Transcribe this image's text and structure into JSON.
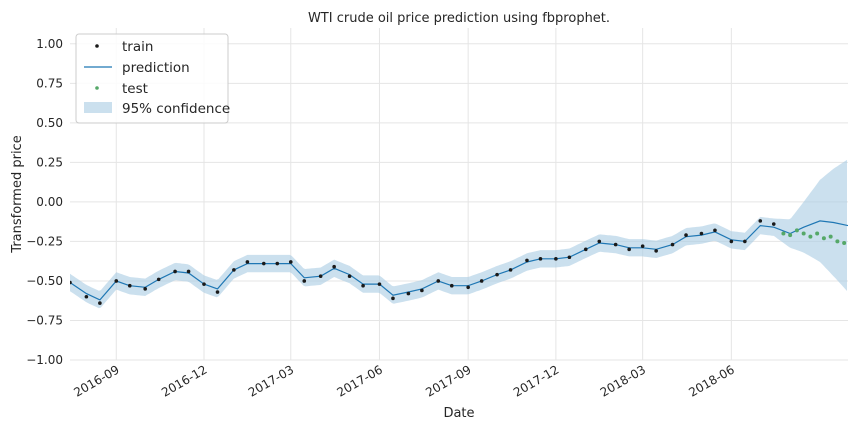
{
  "chart_data": {
    "type": "line",
    "title": "WTI crude oil price prediction using fbprophet.",
    "xlabel": "Date",
    "ylabel": "Transformed price",
    "xlim": [
      "2016-07-15",
      "2018-09-30"
    ],
    "ylim": [
      -1.0,
      1.1
    ],
    "grid": true,
    "legend_position": "top-left",
    "x_ticks": [
      "2016-09",
      "2016-12",
      "2017-03",
      "2017-06",
      "2017-09",
      "2017-12",
      "2018-03",
      "2018-06"
    ],
    "y_ticks": [
      "1.00",
      "0.75",
      "0.50",
      "0.25",
      "0.00",
      "−0.25",
      "−0.50",
      "−0.75",
      "−1.00"
    ],
    "colors": {
      "train": "#1a1a1a",
      "prediction": "#1f77b4",
      "test": "#55a868",
      "confidence": "#a9cce3"
    },
    "series": [
      {
        "name": "train",
        "kind": "points",
        "points": [
          [
            "2016-07-15",
            -0.51
          ],
          [
            "2016-08-01",
            -0.6
          ],
          [
            "2016-08-15",
            -0.64
          ],
          [
            "2016-09-01",
            -0.5
          ],
          [
            "2016-09-15",
            -0.53
          ],
          [
            "2016-10-01",
            -0.55
          ],
          [
            "2016-10-15",
            -0.49
          ],
          [
            "2016-11-01",
            -0.44
          ],
          [
            "2016-11-15",
            -0.44
          ],
          [
            "2016-12-01",
            -0.52
          ],
          [
            "2016-12-15",
            -0.57
          ],
          [
            "2017-01-01",
            -0.43
          ],
          [
            "2017-01-15",
            -0.38
          ],
          [
            "2017-02-01",
            -0.39
          ],
          [
            "2017-02-15",
            -0.39
          ],
          [
            "2017-03-01",
            -0.38
          ],
          [
            "2017-03-15",
            -0.5
          ],
          [
            "2017-04-01",
            -0.47
          ],
          [
            "2017-04-15",
            -0.41
          ],
          [
            "2017-05-01",
            -0.47
          ],
          [
            "2017-05-15",
            -0.53
          ],
          [
            "2017-06-01",
            -0.52
          ],
          [
            "2017-06-15",
            -0.61
          ],
          [
            "2017-07-01",
            -0.58
          ],
          [
            "2017-07-15",
            -0.56
          ],
          [
            "2017-08-01",
            -0.5
          ],
          [
            "2017-08-15",
            -0.53
          ],
          [
            "2017-09-01",
            -0.54
          ],
          [
            "2017-09-15",
            -0.5
          ],
          [
            "2017-10-01",
            -0.46
          ],
          [
            "2017-10-15",
            -0.43
          ],
          [
            "2017-11-01",
            -0.37
          ],
          [
            "2017-11-15",
            -0.36
          ],
          [
            "2017-12-01",
            -0.36
          ],
          [
            "2017-12-15",
            -0.35
          ],
          [
            "2018-01-01",
            -0.3
          ],
          [
            "2018-01-15",
            -0.25
          ],
          [
            "2018-02-01",
            -0.27
          ],
          [
            "2018-02-15",
            -0.3
          ],
          [
            "2018-03-01",
            -0.28
          ],
          [
            "2018-03-15",
            -0.31
          ],
          [
            "2018-04-01",
            -0.27
          ],
          [
            "2018-04-15",
            -0.21
          ],
          [
            "2018-05-01",
            -0.2
          ],
          [
            "2018-05-15",
            -0.18
          ],
          [
            "2018-06-01",
            -0.25
          ],
          [
            "2018-06-15",
            -0.25
          ],
          [
            "2018-07-01",
            -0.12
          ],
          [
            "2018-07-15",
            -0.14
          ]
        ]
      },
      {
        "name": "prediction",
        "kind": "line",
        "points": [
          [
            "2016-07-15",
            -0.51
          ],
          [
            "2016-08-01",
            -0.58
          ],
          [
            "2016-08-15",
            -0.62
          ],
          [
            "2016-09-01",
            -0.5
          ],
          [
            "2016-09-15",
            -0.53
          ],
          [
            "2016-10-01",
            -0.54
          ],
          [
            "2016-10-15",
            -0.49
          ],
          [
            "2016-11-01",
            -0.44
          ],
          [
            "2016-11-15",
            -0.45
          ],
          [
            "2016-12-01",
            -0.52
          ],
          [
            "2016-12-15",
            -0.55
          ],
          [
            "2017-01-01",
            -0.43
          ],
          [
            "2017-01-15",
            -0.39
          ],
          [
            "2017-02-01",
            -0.39
          ],
          [
            "2017-02-15",
            -0.39
          ],
          [
            "2017-03-01",
            -0.39
          ],
          [
            "2017-03-15",
            -0.48
          ],
          [
            "2017-04-01",
            -0.47
          ],
          [
            "2017-04-15",
            -0.42
          ],
          [
            "2017-05-01",
            -0.46
          ],
          [
            "2017-05-15",
            -0.52
          ],
          [
            "2017-06-01",
            -0.52
          ],
          [
            "2017-06-15",
            -0.59
          ],
          [
            "2017-07-01",
            -0.57
          ],
          [
            "2017-07-15",
            -0.55
          ],
          [
            "2017-08-01",
            -0.5
          ],
          [
            "2017-08-15",
            -0.53
          ],
          [
            "2017-09-01",
            -0.53
          ],
          [
            "2017-09-15",
            -0.5
          ],
          [
            "2017-10-01",
            -0.46
          ],
          [
            "2017-10-15",
            -0.43
          ],
          [
            "2017-11-01",
            -0.38
          ],
          [
            "2017-11-15",
            -0.36
          ],
          [
            "2017-12-01",
            -0.36
          ],
          [
            "2017-12-15",
            -0.35
          ],
          [
            "2018-01-01",
            -0.3
          ],
          [
            "2018-01-15",
            -0.26
          ],
          [
            "2018-02-01",
            -0.27
          ],
          [
            "2018-02-15",
            -0.29
          ],
          [
            "2018-03-01",
            -0.29
          ],
          [
            "2018-03-15",
            -0.3
          ],
          [
            "2018-04-01",
            -0.27
          ],
          [
            "2018-04-15",
            -0.22
          ],
          [
            "2018-05-01",
            -0.21
          ],
          [
            "2018-05-15",
            -0.19
          ],
          [
            "2018-06-01",
            -0.24
          ],
          [
            "2018-06-15",
            -0.25
          ],
          [
            "2018-07-01",
            -0.15
          ],
          [
            "2018-07-15",
            -0.16
          ],
          [
            "2018-08-01",
            -0.2
          ],
          [
            "2018-08-15",
            -0.16
          ],
          [
            "2018-09-01",
            -0.12
          ],
          [
            "2018-09-15",
            -0.13
          ],
          [
            "2018-09-30",
            -0.15
          ]
        ]
      },
      {
        "name": "test",
        "kind": "points",
        "points": [
          [
            "2018-07-25",
            -0.2
          ],
          [
            "2018-08-01",
            -0.21
          ],
          [
            "2018-08-08",
            -0.18
          ],
          [
            "2018-08-15",
            -0.2
          ],
          [
            "2018-08-22",
            -0.22
          ],
          [
            "2018-08-29",
            -0.2
          ],
          [
            "2018-09-05",
            -0.23
          ],
          [
            "2018-09-12",
            -0.22
          ],
          [
            "2018-09-19",
            -0.25
          ],
          [
            "2018-09-26",
            -0.26
          ]
        ]
      },
      {
        "name": "95% confidence",
        "kind": "band",
        "width": [
          [
            "2016-07-15",
            0.055
          ],
          [
            "2018-07-15",
            0.055
          ],
          [
            "2018-08-01",
            0.09
          ],
          [
            "2018-08-15",
            0.16
          ],
          [
            "2018-09-01",
            0.26
          ],
          [
            "2018-09-15",
            0.34
          ],
          [
            "2018-09-30",
            0.42
          ]
        ]
      }
    ]
  }
}
